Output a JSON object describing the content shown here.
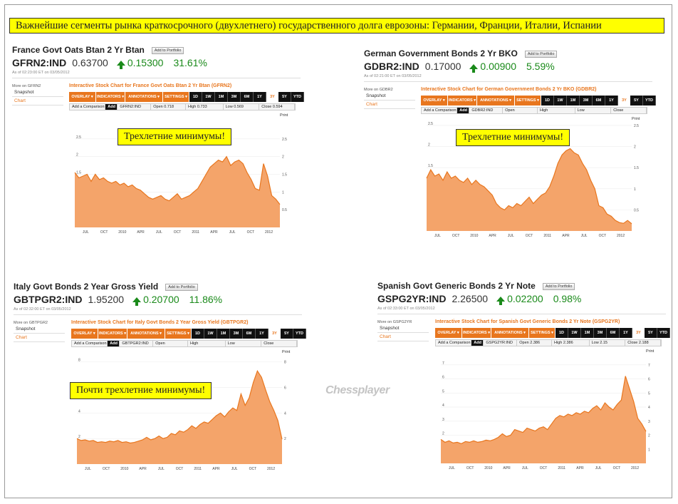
{
  "header": "Важнейшие сегменты рынка краткосрочного (двухлетнего) государственного долга еврозоны: Германии, Франции, Италии, Испании",
  "watermark": "Chessplayer",
  "common": {
    "add_portfolio": "Add to Portfolio",
    "snapshot": "Snapshot",
    "chart": "Chart",
    "print": "Print",
    "toolbar": [
      "OVERLAY ▾",
      "INDICATORS ▾",
      "ANNOTATIONS ▾",
      "SETTINGS ▾"
    ],
    "ranges": [
      "1D",
      "1W",
      "1M",
      "3M",
      "6M",
      "1Y",
      "3Y",
      "5Y",
      "YTD"
    ],
    "selected_range": "3Y",
    "add_comparison": "Add a Comparison",
    "add": "Add"
  },
  "panels": [
    {
      "id": "france",
      "title": "France Govt Oats Btan 2 Yr Btan",
      "ticker": "GFRN2:IND",
      "price": "0.63700",
      "change": "0.15300",
      "pct": "31.61%",
      "asof": "As of 02:23:00 ET on 03/05/2012",
      "more_on": "More on GFRN2",
      "chart_title": "Interactive Stock Chart for France Govt Oats Btan 2 Yr Btan (GFRN2)",
      "comp": {
        "ticker": "GFRN2:IND",
        "open": "Open 0.718",
        "high": "High 0.733",
        "low": "Low 0.569",
        "close": "Close 0.594"
      },
      "note": "Трехлетние минимумы!"
    },
    {
      "id": "germany",
      "title": "German Government Bonds 2 Yr BKO",
      "ticker": "GDBR2:IND",
      "price": "0.17000",
      "change": "0.00900",
      "pct": "5.59%",
      "asof": "As of 02:21:00 ET on 03/05/2012",
      "more_on": "More on GDBR2",
      "chart_title": "Interactive Stock Chart for German Government Bonds 2 Yr BKO (GDBR2)",
      "comp": {
        "ticker": "GDBR2:IND",
        "open": "Open",
        "high": "High",
        "low": "Low",
        "close": "Close"
      },
      "note": "Трехлетние минимумы!"
    },
    {
      "id": "italy",
      "title": "Italy Govt Bonds 2 Year Gross Yield",
      "ticker": "GBTPGR2:IND",
      "price": "1.95200",
      "change": "0.20700",
      "pct": "11.86%",
      "asof": "As of 02:32:00 ET on 03/05/2012",
      "more_on": "More on GBTPGR2",
      "chart_title": "Interactive Stock Chart for Italy Govt Bonds 2 Year Gross Yield (GBTPGR2)",
      "comp": {
        "ticker": "GBTPGR2:IND",
        "open": "Open",
        "high": "High",
        "low": "Low",
        "close": "Close"
      },
      "note": "Почти трехлетние минимумы!"
    },
    {
      "id": "spain",
      "title": "Spanish Govt Generic Bonds 2 Yr Note",
      "ticker": "GSPG2YR:IND",
      "price": "2.26500",
      "change": "0.02200",
      "pct": "0.98%",
      "asof": "As of 02:33:00 ET on 03/05/2012",
      "more_on": "More on GSPG2YR",
      "chart_title": "Interactive Stock Chart for Spanish Govt Generic Bonds 2 Yr Note (GSPG2YR)",
      "comp": {
        "ticker": "GSPG2YR:IND",
        "open": "Open 2.386",
        "high": "High 2.386",
        "low": "Low 2.15",
        "close": "Close 2.188"
      },
      "note": ""
    }
  ],
  "chart_data": [
    {
      "type": "area",
      "panel": "france",
      "color": "#f4a46a",
      "line_color": "#e8761e",
      "x_ticks": [
        "JUL",
        "OCT",
        "2010",
        "APR",
        "JUL",
        "OCT",
        "2011",
        "APR",
        "JUL",
        "OCT",
        "2012"
      ],
      "y_ticks": [
        0.5,
        1,
        1.5,
        2,
        2.5
      ],
      "ylim": [
        0,
        3.1
      ],
      "values": [
        1.55,
        1.4,
        1.45,
        1.5,
        1.3,
        1.5,
        1.35,
        1.4,
        1.3,
        1.25,
        1.3,
        1.2,
        1.25,
        1.15,
        1.2,
        1.1,
        1.05,
        0.95,
        0.85,
        0.8,
        0.85,
        0.9,
        0.8,
        0.75,
        0.85,
        0.95,
        0.8,
        0.85,
        0.9,
        1.0,
        1.1,
        1.3,
        1.5,
        1.7,
        1.8,
        1.9,
        1.85,
        2.0,
        1.75,
        1.85,
        1.9,
        1.8,
        1.55,
        1.35,
        1.1,
        1.05,
        1.8,
        1.45,
        0.9,
        0.8,
        0.65
      ]
    },
    {
      "type": "area",
      "panel": "germany",
      "color": "#f4a46a",
      "line_color": "#e8761e",
      "x_ticks": [
        "JUL",
        "OCT",
        "2010",
        "APR",
        "JUL",
        "OCT",
        "2011",
        "APR",
        "JUL",
        "OCT",
        "2012"
      ],
      "y_ticks": [
        0.5,
        1,
        1.5,
        2,
        2.5
      ],
      "ylim": [
        0,
        2.6
      ],
      "values": [
        1.25,
        1.45,
        1.3,
        1.35,
        1.2,
        1.4,
        1.25,
        1.3,
        1.2,
        1.15,
        1.25,
        1.1,
        1.2,
        1.1,
        1.05,
        0.95,
        0.85,
        0.65,
        0.55,
        0.5,
        0.6,
        0.55,
        0.65,
        0.6,
        0.7,
        0.8,
        0.65,
        0.75,
        0.85,
        0.9,
        1.05,
        1.3,
        1.6,
        1.8,
        1.9,
        1.95,
        1.85,
        1.8,
        1.6,
        1.45,
        1.2,
        1.0,
        0.6,
        0.55,
        0.4,
        0.35,
        0.25,
        0.2,
        0.18,
        0.25,
        0.17
      ]
    },
    {
      "type": "area",
      "panel": "italy",
      "color": "#f4a46a",
      "line_color": "#e8761e",
      "x_ticks": [
        "JUL",
        "OCT",
        "2010",
        "APR",
        "JUL",
        "OCT",
        "2011",
        "APR",
        "JUL",
        "OCT",
        "2012"
      ],
      "y_ticks": [
        2,
        4,
        6,
        8
      ],
      "ylim": [
        0,
        8.6
      ],
      "values": [
        2.0,
        1.85,
        1.9,
        1.8,
        1.85,
        1.7,
        1.75,
        1.7,
        1.8,
        1.75,
        1.85,
        1.7,
        1.75,
        1.65,
        1.7,
        1.8,
        1.9,
        2.1,
        1.9,
        2.0,
        2.2,
        2.0,
        2.1,
        2.4,
        2.3,
        2.6,
        2.5,
        2.7,
        3.0,
        2.8,
        3.1,
        3.3,
        3.2,
        3.5,
        3.8,
        4.0,
        3.7,
        4.1,
        4.4,
        4.2,
        5.5,
        4.6,
        5.2,
        6.4,
        7.3,
        6.8,
        5.8,
        4.9,
        4.2,
        3.4,
        1.95
      ]
    },
    {
      "type": "area",
      "panel": "spain",
      "color": "#f4a46a",
      "line_color": "#e8761e",
      "x_ticks": [
        "JUL",
        "OCT",
        "2010",
        "APR",
        "JUL",
        "OCT",
        "2011",
        "APR",
        "JUL",
        "OCT",
        "2012"
      ],
      "y_ticks": [
        1,
        2,
        3,
        4,
        5,
        6,
        7
      ],
      "ylim": [
        0,
        7.8
      ],
      "values": [
        1.7,
        1.5,
        1.6,
        1.45,
        1.5,
        1.4,
        1.55,
        1.5,
        1.6,
        1.5,
        1.55,
        1.65,
        1.6,
        1.7,
        1.85,
        2.1,
        1.9,
        2.0,
        2.4,
        2.3,
        2.2,
        2.5,
        2.4,
        2.3,
        2.5,
        2.6,
        2.4,
        2.8,
        3.2,
        3.4,
        3.3,
        3.5,
        3.4,
        3.6,
        3.5,
        3.7,
        3.6,
        3.9,
        4.1,
        3.8,
        4.3,
        4.0,
        3.8,
        4.2,
        4.5,
        6.2,
        5.3,
        4.4,
        3.2,
        2.8,
        2.27
      ]
    }
  ]
}
